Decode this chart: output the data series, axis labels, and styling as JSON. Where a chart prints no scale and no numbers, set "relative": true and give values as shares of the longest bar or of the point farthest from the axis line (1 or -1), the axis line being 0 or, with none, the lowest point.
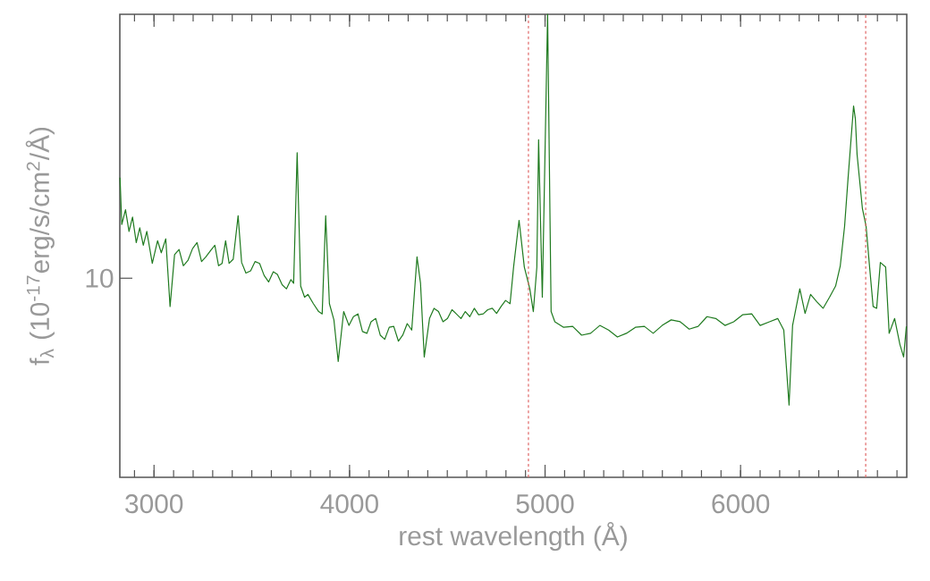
{
  "chart_data": {
    "type": "line",
    "xlabel": "rest wavelength (Å)",
    "ylabel": "f$_{λ}$ (10$^{-17}$erg/s/cm$^{2}$/Å)",
    "relative": true,
    "annotations": [
      "10"
    ],
    "xlim": [
      2825,
      6850
    ],
    "xticks": [
      3000,
      4000,
      5000,
      6000
    ],
    "ref_lines": [
      {
        "axis": "x",
        "value": 4915,
        "color": "#e06666",
        "line_style": "dashed"
      },
      {
        "axis": "x",
        "value": 6640,
        "color": "#e06666",
        "line_style": "dashed"
      }
    ],
    "series": [
      {
        "color": "#1f7a1f",
        "x": [
          2826,
          2835,
          2854,
          2872,
          2890,
          2909,
          2927,
          2945,
          2963,
          2991,
          3018,
          3037,
          3060,
          3082,
          3105,
          3128,
          3150,
          3174,
          3197,
          3220,
          3243,
          3265,
          3290,
          3311,
          3330,
          3348,
          3366,
          3384,
          3405,
          3430,
          3448,
          3470,
          3494,
          3517,
          3540,
          3563,
          3586,
          3610,
          3631,
          3655,
          3677,
          3700,
          3714,
          3732,
          3750,
          3770,
          3787,
          3815,
          3842,
          3860,
          3878,
          3897,
          3920,
          3942,
          3970,
          3997,
          4020,
          4043,
          4066,
          4089,
          4110,
          4134,
          4157,
          4180,
          4203,
          4226,
          4250,
          4272,
          4295,
          4318,
          4345,
          4363,
          4382,
          4409,
          4432,
          4455,
          4478,
          4501,
          4524,
          4546,
          4570,
          4592,
          4615,
          4638,
          4660,
          4684,
          4707,
          4730,
          4752,
          4775,
          4798,
          4821,
          4839,
          4867,
          4894,
          4922,
          4940,
          4958,
          4967,
          4986,
          5013,
          5031,
          5050,
          5095,
          5141,
          5187,
          5233,
          5280,
          5325,
          5370,
          5416,
          5462,
          5508,
          5553,
          5599,
          5645,
          5691,
          5737,
          5783,
          5828,
          5873,
          5920,
          5965,
          6010,
          6057,
          6100,
          6148,
          6190,
          6221,
          6248,
          6266,
          6303,
          6330,
          6358,
          6390,
          6422,
          6455,
          6486,
          6510,
          6532,
          6550,
          6578,
          6587,
          6596,
          6623,
          6642,
          6660,
          6678,
          6696,
          6715,
          6742,
          6760,
          6788,
          6815,
          6834,
          6848
        ],
        "values": [
          0.647,
          0.546,
          0.578,
          0.531,
          0.562,
          0.507,
          0.539,
          0.501,
          0.531,
          0.462,
          0.511,
          0.485,
          0.515,
          0.369,
          0.481,
          0.492,
          0.457,
          0.469,
          0.494,
          0.507,
          0.466,
          0.476,
          0.49,
          0.501,
          0.457,
          0.462,
          0.511,
          0.462,
          0.471,
          0.565,
          0.464,
          0.441,
          0.446,
          0.466,
          0.462,
          0.436,
          0.422,
          0.444,
          0.438,
          0.416,
          0.407,
          0.427,
          0.419,
          0.701,
          0.413,
          0.389,
          0.395,
          0.375,
          0.358,
          0.353,
          0.565,
          0.375,
          0.34,
          0.25,
          0.358,
          0.328,
          0.347,
          0.353,
          0.315,
          0.311,
          0.336,
          0.343,
          0.307,
          0.298,
          0.324,
          0.326,
          0.294,
          0.307,
          0.332,
          0.318,
          0.476,
          0.419,
          0.26,
          0.343,
          0.365,
          0.358,
          0.336,
          0.343,
          0.362,
          0.353,
          0.343,
          0.358,
          0.347,
          0.365,
          0.351,
          0.353,
          0.362,
          0.365,
          0.354,
          0.369,
          0.382,
          0.375,
          0.454,
          0.555,
          0.454,
          0.407,
          0.358,
          0.454,
          0.729,
          0.389,
          1,
          0.358,
          0.336,
          0.324,
          0.326,
          0.307,
          0.311,
          0.328,
          0.318,
          0.303,
          0.311,
          0.324,
          0.326,
          0.311,
          0.328,
          0.34,
          0.336,
          0.32,
          0.326,
          0.347,
          0.343,
          0.328,
          0.336,
          0.351,
          0.353,
          0.328,
          0.336,
          0.343,
          0.318,
          0.156,
          0.328,
          0.407,
          0.354,
          0.395,
          0.379,
          0.365,
          0.389,
          0.413,
          0.457,
          0.542,
          0.647,
          0.802,
          0.775,
          0.697,
          0.581,
          0.542,
          0.454,
          0.369,
          0.365,
          0.464,
          0.454,
          0.311,
          0.343,
          0.287,
          0.26,
          0.326
        ]
      }
    ]
  }
}
